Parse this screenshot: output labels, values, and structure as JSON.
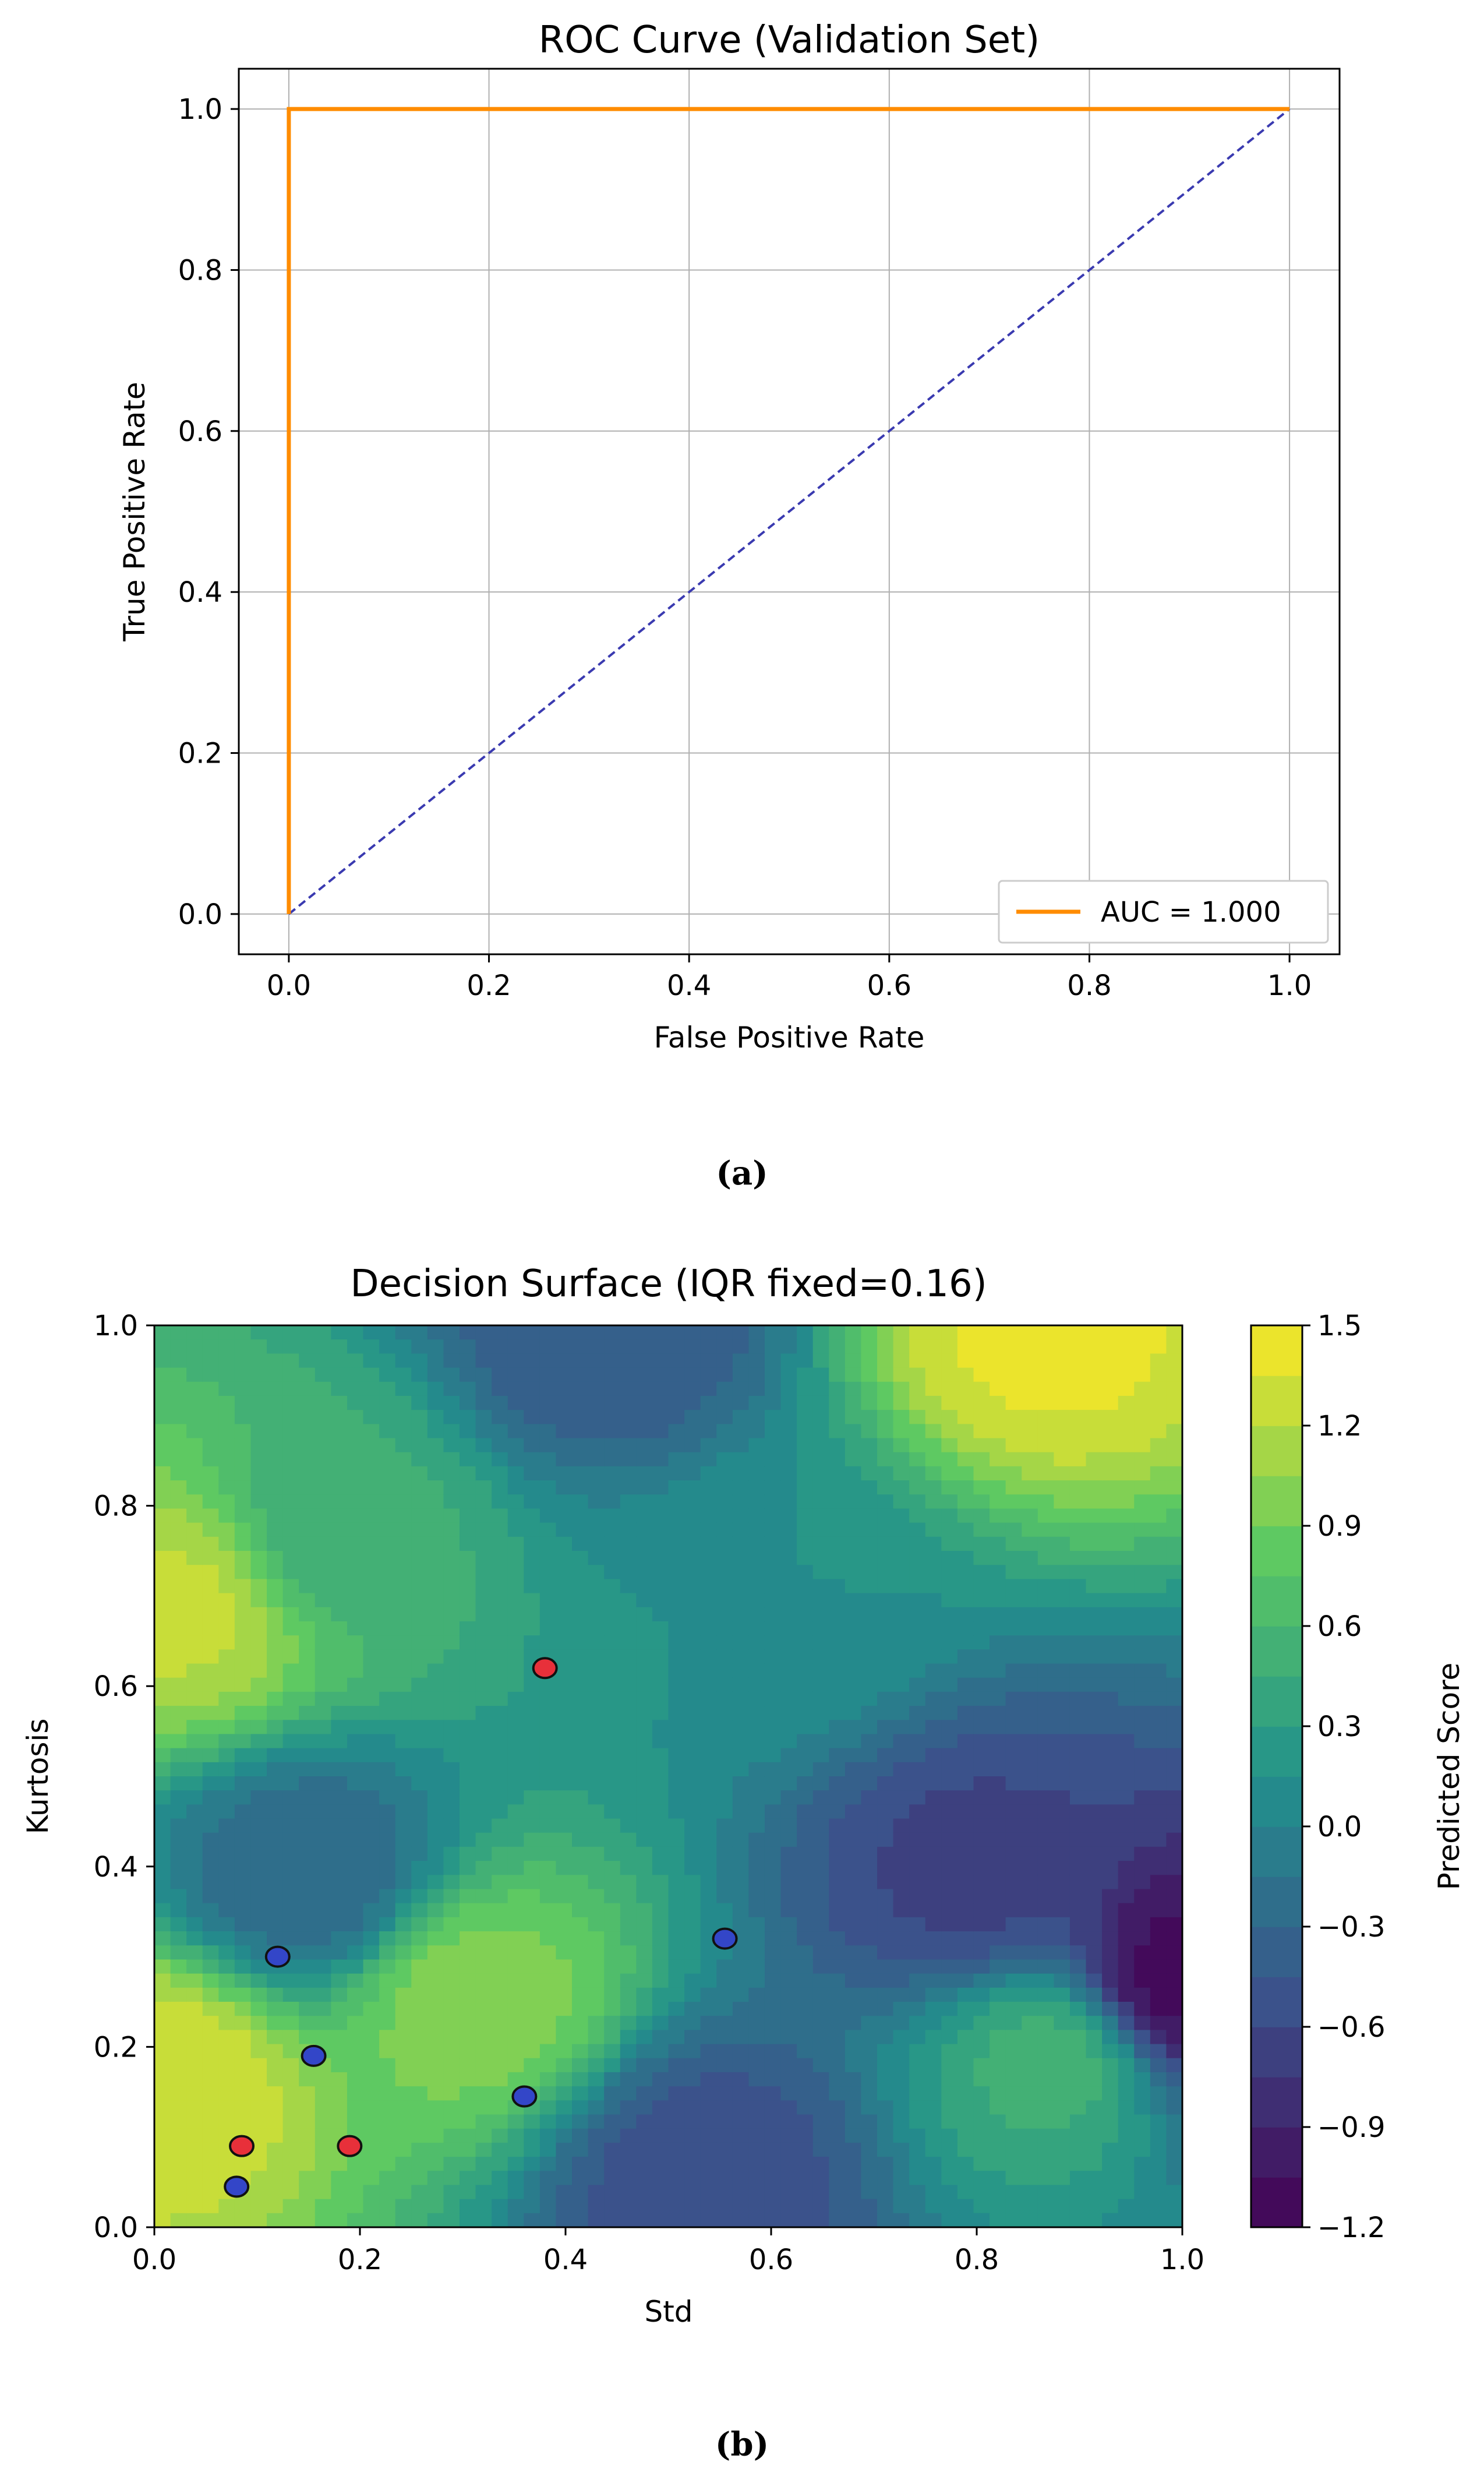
{
  "chart_data": [
    {
      "type": "line",
      "title": "ROC Curve (Validation Set)",
      "xlabel": "False Positive Rate",
      "ylabel": "True Positive Rate",
      "xlim": [
        -0.05,
        1.05
      ],
      "ylim": [
        -0.05,
        1.05
      ],
      "xticks": [
        "0.0",
        "0.2",
        "0.4",
        "0.6",
        "0.8",
        "1.0"
      ],
      "yticks": [
        "0.0",
        "0.2",
        "0.4",
        "0.6",
        "0.8",
        "1.0"
      ],
      "grid": true,
      "legend_position": "lower right",
      "series": [
        {
          "name": "AUC = 1.000",
          "color": "#ff8c00",
          "style": "solid",
          "x": [
            0.0,
            0.0,
            1.0
          ],
          "y": [
            0.0,
            1.0,
            1.0
          ]
        },
        {
          "color": "#3a3ab0",
          "style": "dashed",
          "x": [
            0.0,
            1.0
          ],
          "y": [
            0.0,
            1.0
          ]
        }
      ],
      "caption": "(a)"
    },
    {
      "type": "heatmap",
      "title": "Decision Surface (IQR fixed=0.16)",
      "xlabel": "Std",
      "ylabel": "Kurtosis",
      "xlim": [
        0.0,
        1.0
      ],
      "ylim": [
        0.0,
        1.0
      ],
      "xticks": [
        "0.0",
        "0.2",
        "0.4",
        "0.6",
        "0.8",
        "1.0"
      ],
      "yticks": [
        "0.0",
        "0.2",
        "0.4",
        "0.6",
        "0.8",
        "1.0"
      ],
      "colorbar": {
        "label": "Predicted Score",
        "range": [
          -1.2,
          1.5
        ],
        "ticks": [
          "−1.2",
          "−0.9",
          "−0.6",
          "−0.3",
          "0.0",
          "0.3",
          "0.6",
          "0.9",
          "1.2",
          "1.5"
        ],
        "colormap": "viridis"
      },
      "surface_features": [
        {
          "x": 0.03,
          "y": 0.69,
          "score": 1.25
        },
        {
          "x": 0.01,
          "y": 0.16,
          "score": 1.35
        },
        {
          "x": 0.31,
          "y": 0.25,
          "score": 1.0
        },
        {
          "x": 0.87,
          "y": 1.0,
          "score": 1.4
        },
        {
          "x": 0.15,
          "y": 0.39,
          "score": -0.3
        },
        {
          "x": 0.44,
          "y": 1.0,
          "score": -0.45
        },
        {
          "x": 0.53,
          "y": 0.06,
          "score": -0.55
        },
        {
          "x": 0.8,
          "y": 0.39,
          "score": -0.65
        },
        {
          "x": 0.99,
          "y": 0.27,
          "score": -1.15
        },
        {
          "x": 0.88,
          "y": 0.19,
          "score": 0.55
        },
        {
          "x": 0.17,
          "y": 0.77,
          "score": 0.5
        },
        {
          "x": 0.6,
          "y": 0.7,
          "score": 0.15
        }
      ],
      "points": [
        {
          "x": 0.38,
          "y": 0.62,
          "class": "red",
          "color": "#e8303a"
        },
        {
          "x": 0.085,
          "y": 0.09,
          "class": "red",
          "color": "#e8303a"
        },
        {
          "x": 0.19,
          "y": 0.09,
          "class": "red",
          "color": "#e8303a"
        },
        {
          "x": 0.12,
          "y": 0.3,
          "class": "blue",
          "color": "#3346c8"
        },
        {
          "x": 0.155,
          "y": 0.19,
          "class": "blue",
          "color": "#3346c8"
        },
        {
          "x": 0.08,
          "y": 0.045,
          "class": "blue",
          "color": "#3346c8"
        },
        {
          "x": 0.36,
          "y": 0.145,
          "class": "blue",
          "color": "#3346c8"
        },
        {
          "x": 0.555,
          "y": 0.32,
          "class": "blue",
          "color": "#3346c8"
        }
      ],
      "caption": "(b)"
    }
  ]
}
